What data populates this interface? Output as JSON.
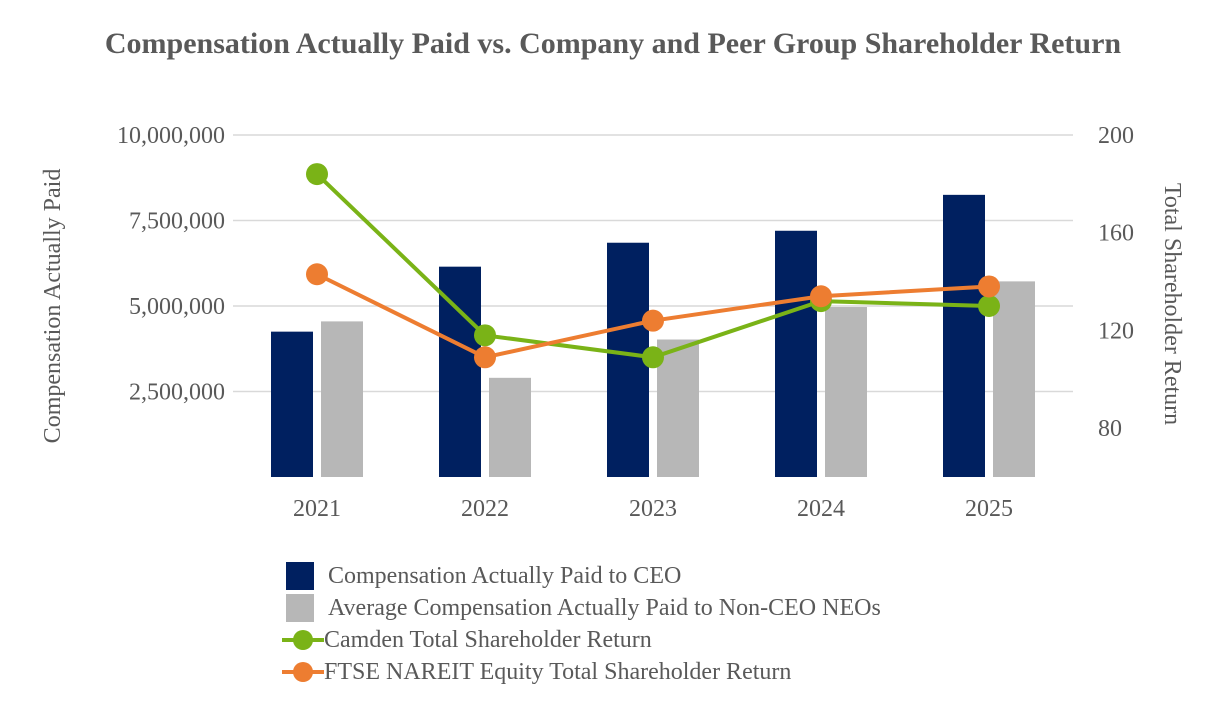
{
  "chart_data": {
    "type": "bar",
    "title": "Compensation Actually Paid vs. Company and Peer Group Shareholder Return",
    "categories": [
      "2021",
      "2022",
      "2023",
      "2024",
      "2025"
    ],
    "ylabel": "Compensation Actually Paid",
    "y2label": "Total Shareholder Return",
    "ylim": [
      0,
      10000000
    ],
    "y2lim": [
      60,
      200
    ],
    "yticks": [
      2500000,
      5000000,
      7500000,
      10000000
    ],
    "yticklabels": [
      "2,500,000",
      "5,000,000",
      "7,500,000",
      "10,000,000"
    ],
    "y2ticks": [
      80,
      120,
      160,
      200
    ],
    "y2ticklabels": [
      "80",
      "120",
      "160",
      "200"
    ],
    "grid": true,
    "legend_position": "bottom",
    "series": [
      {
        "name": "Compensation Actually Paid to CEO",
        "kind": "bar",
        "axis": "left",
        "color": "#002060",
        "values": [
          4250000,
          6150000,
          6850000,
          7200000,
          8250000
        ]
      },
      {
        "name": "Average Compensation Actually Paid to Non-CEO NEOs",
        "kind": "bar",
        "axis": "left",
        "color": "#B7B7B7",
        "values": [
          4550000,
          2900000,
          4020000,
          4970000,
          5720000
        ]
      },
      {
        "name": "Camden Total Shareholder Return",
        "kind": "line",
        "axis": "right",
        "color": "#7AB317",
        "values": [
          184,
          118,
          109,
          132,
          130
        ]
      },
      {
        "name": "FTSE NAREIT Equity Total Shareholder Return",
        "kind": "line",
        "axis": "right",
        "color": "#ED7D31",
        "values": [
          143,
          109,
          124,
          134,
          138
        ]
      }
    ]
  }
}
